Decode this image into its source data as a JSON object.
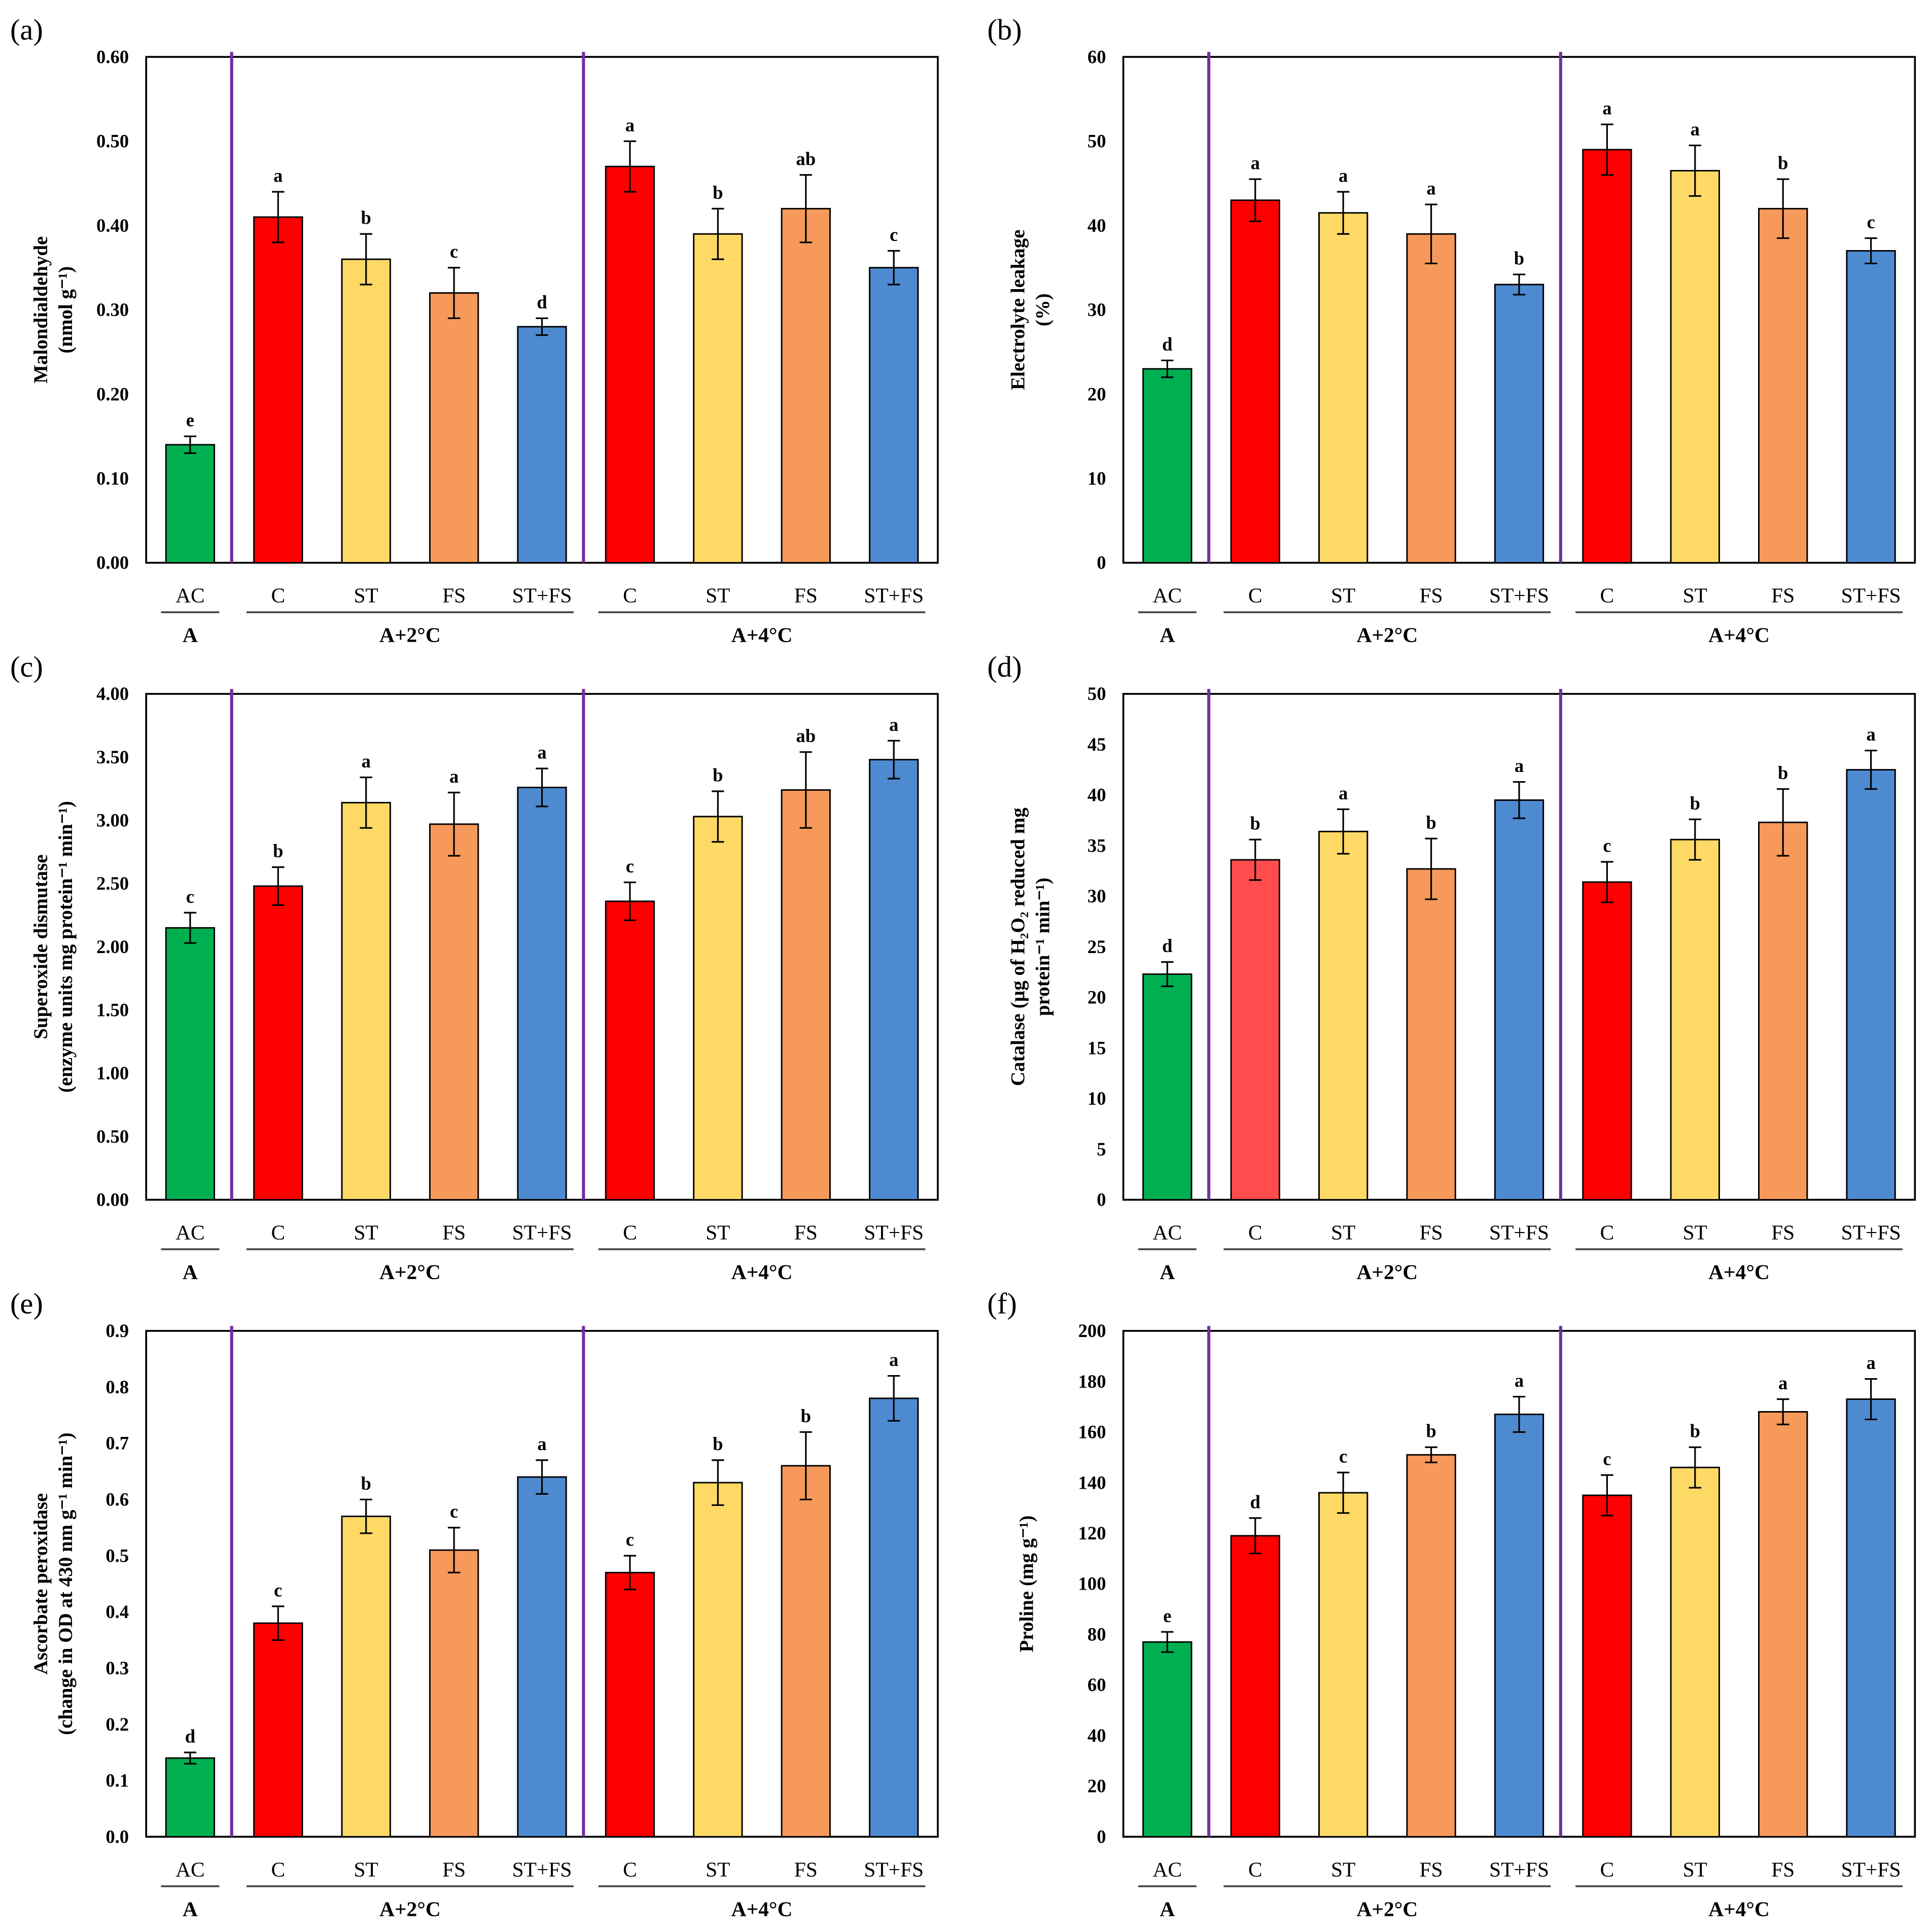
{
  "categories": [
    "AC",
    "C",
    "ST",
    "FS",
    "ST+FS",
    "C",
    "ST",
    "FS",
    "ST+FS"
  ],
  "groups": [
    {
      "label": "A",
      "span": [
        0,
        0
      ]
    },
    {
      "label": "A+2°C",
      "span": [
        1,
        4
      ]
    },
    {
      "label": "A+4°C",
      "span": [
        5,
        8
      ]
    }
  ],
  "colors": {
    "AC": "#00b050",
    "C": "#ff0000",
    "ST": "#ffd966",
    "FS": "#f7995a",
    "ST+FS": "#4e8ad0",
    "divider": "#7030a0"
  },
  "chart_data": [
    {
      "type": "bar",
      "panel": "(a)",
      "ylabel": [
        "Malondialdehyde",
        "(nmol g⁻¹)"
      ],
      "ylim": [
        0,
        0.6
      ],
      "ystep": 0.1,
      "decimals": 2,
      "values": [
        0.14,
        0.41,
        0.36,
        0.32,
        0.28,
        0.47,
        0.39,
        0.42,
        0.35
      ],
      "errors": [
        0.01,
        0.03,
        0.03,
        0.03,
        0.01,
        0.03,
        0.03,
        0.04,
        0.02
      ],
      "letters": [
        "e",
        "a",
        "b",
        "c",
        "d",
        "a",
        "b",
        "ab",
        "c"
      ]
    },
    {
      "type": "bar",
      "panel": "(b)",
      "ylabel": [
        "Electrolyte leakage",
        "(%)"
      ],
      "ylim": [
        0,
        60
      ],
      "ystep": 10,
      "decimals": 0,
      "values": [
        23,
        43,
        41.5,
        39,
        33,
        49,
        46.5,
        42,
        37
      ],
      "errors": [
        1,
        2.5,
        2.5,
        3.5,
        1.2,
        3,
        3,
        3.5,
        1.5
      ],
      "letters": [
        "d",
        "a",
        "a",
        "a",
        "b",
        "a",
        "a",
        "b",
        "c"
      ]
    },
    {
      "type": "bar",
      "panel": "(c)",
      "ylabel": [
        "Superoxide dismutase",
        "(enzyme units mg protein⁻¹ min⁻¹)"
      ],
      "ylim": [
        0,
        4
      ],
      "ystep": 0.5,
      "decimals": 2,
      "values": [
        2.15,
        2.48,
        3.14,
        2.97,
        3.26,
        2.36,
        3.03,
        3.24,
        3.48
      ],
      "errors": [
        0.12,
        0.15,
        0.2,
        0.25,
        0.15,
        0.15,
        0.2,
        0.3,
        0.15
      ],
      "letters": [
        "c",
        "b",
        "a",
        "a",
        "a",
        "c",
        "b",
        "ab",
        "a"
      ]
    },
    {
      "type": "bar",
      "panel": "(d)",
      "ylabel": [
        "Catalase (µg of H₂O₂ reduced mg",
        "protein⁻¹ min⁻¹)"
      ],
      "ylim": [
        0,
        50
      ],
      "ystep": 5,
      "decimals": 0,
      "values": [
        22.3,
        33.6,
        36.4,
        32.7,
        39.5,
        31.4,
        35.6,
        37.3,
        42.5
      ],
      "errors": [
        1.2,
        2,
        2.2,
        3,
        1.8,
        2,
        2,
        3.3,
        1.9
      ],
      "letters": [
        "d",
        "b",
        "a",
        "b",
        "a",
        "c",
        "b",
        "b",
        "a"
      ],
      "color_override": {
        "1": "#ff4c4c"
      }
    },
    {
      "type": "bar",
      "panel": "(e)",
      "ylabel": [
        "Ascorbate peroxidase",
        "(change in OD at 430 nm g⁻¹ min⁻¹)"
      ],
      "ylim": [
        0,
        0.9
      ],
      "ystep": 0.1,
      "decimals": 1,
      "values": [
        0.14,
        0.38,
        0.57,
        0.51,
        0.64,
        0.47,
        0.63,
        0.66,
        0.78
      ],
      "errors": [
        0.01,
        0.03,
        0.03,
        0.04,
        0.03,
        0.03,
        0.04,
        0.06,
        0.04
      ],
      "letters": [
        "d",
        "c",
        "b",
        "c",
        "a",
        "c",
        "b",
        "b",
        "a"
      ]
    },
    {
      "type": "bar",
      "panel": "(f)",
      "ylabel": [
        "Proline (mg g⁻¹)"
      ],
      "ylim": [
        0,
        200
      ],
      "ystep": 20,
      "decimals": 0,
      "values": [
        77,
        119,
        136,
        151,
        167,
        135,
        146,
        168,
        173
      ],
      "errors": [
        4,
        7,
        8,
        3,
        7,
        8,
        8,
        5,
        8
      ],
      "letters": [
        "e",
        "d",
        "c",
        "b",
        "a",
        "c",
        "b",
        "a",
        "a"
      ]
    }
  ]
}
